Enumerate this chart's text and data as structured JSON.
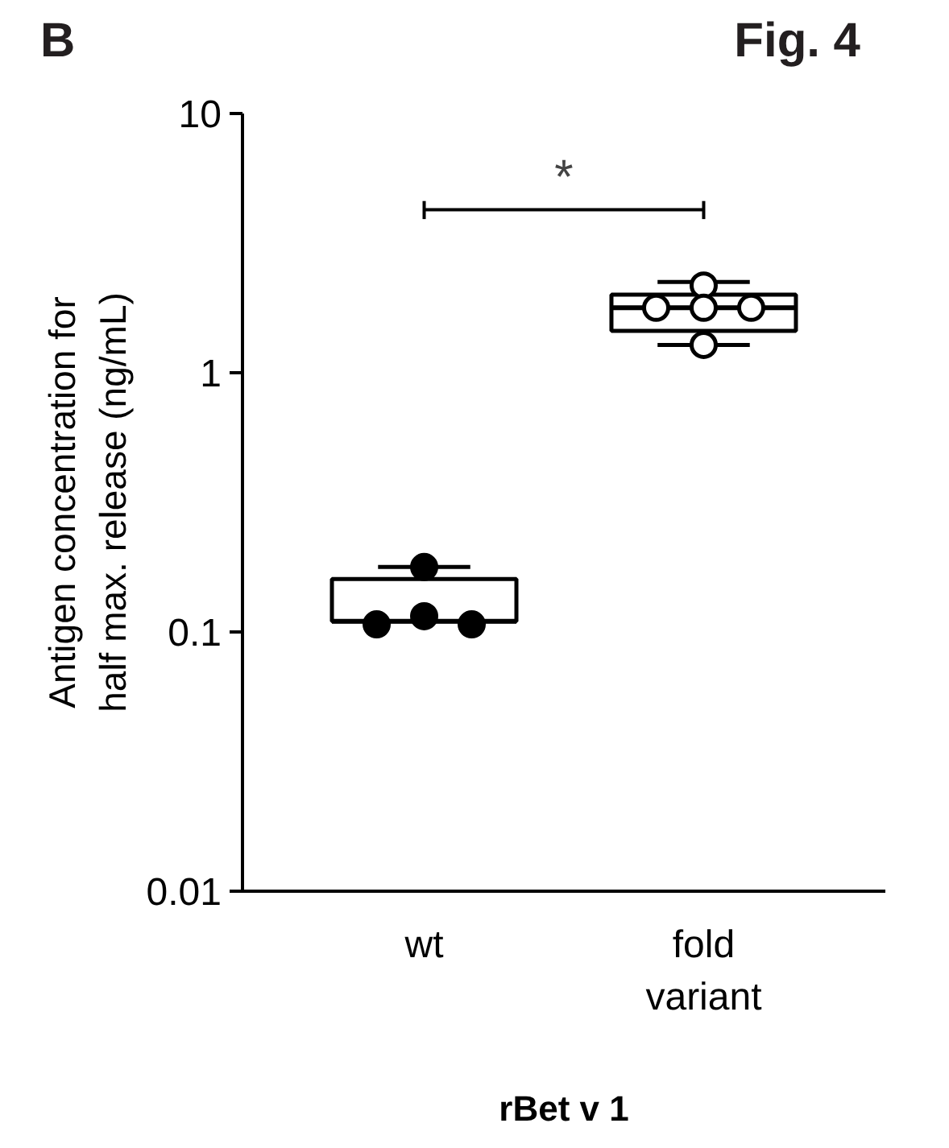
{
  "chart_data": {
    "type": "box",
    "categories": [
      "wt",
      "fold\nvariant"
    ],
    "xlabel": "rBet v 1",
    "ylabel": "Antigen concentration for\nhalf max. release (ng/mL)",
    "log": true,
    "ylim": [
      0.01,
      10
    ],
    "yticks": [
      0.01,
      0.1,
      1,
      10
    ],
    "grid": false,
    "series": [
      {
        "color": "#000000",
        "boxes": [
          {
            "low": 0.11,
            "q1": 0.11,
            "median": 0.11,
            "q3": 0.16,
            "high": 0.178
          },
          {
            "low": 1.28,
            "q1": 1.45,
            "median": 1.78,
            "q3": 2.0,
            "high": 2.24
          }
        ]
      },
      {
        "type": "scatter",
        "color": "#000000",
        "marker": "circle",
        "x": [
          "wt",
          "wt",
          "wt",
          "wt"
        ],
        "values": [
          0.178,
          0.107,
          0.115,
          0.107
        ]
      },
      {
        "type": "scatter",
        "color": "#ffffff",
        "marker": "circle",
        "x": [
          "fold\nvariant",
          "fold\nvariant",
          "fold\nvariant",
          "fold\nvariant",
          "fold\nvariant"
        ],
        "values": [
          2.17,
          1.78,
          1.78,
          1.78,
          1.28
        ]
      }
    ],
    "annotations": [
      "B",
      "Fig. 4",
      "*"
    ]
  }
}
